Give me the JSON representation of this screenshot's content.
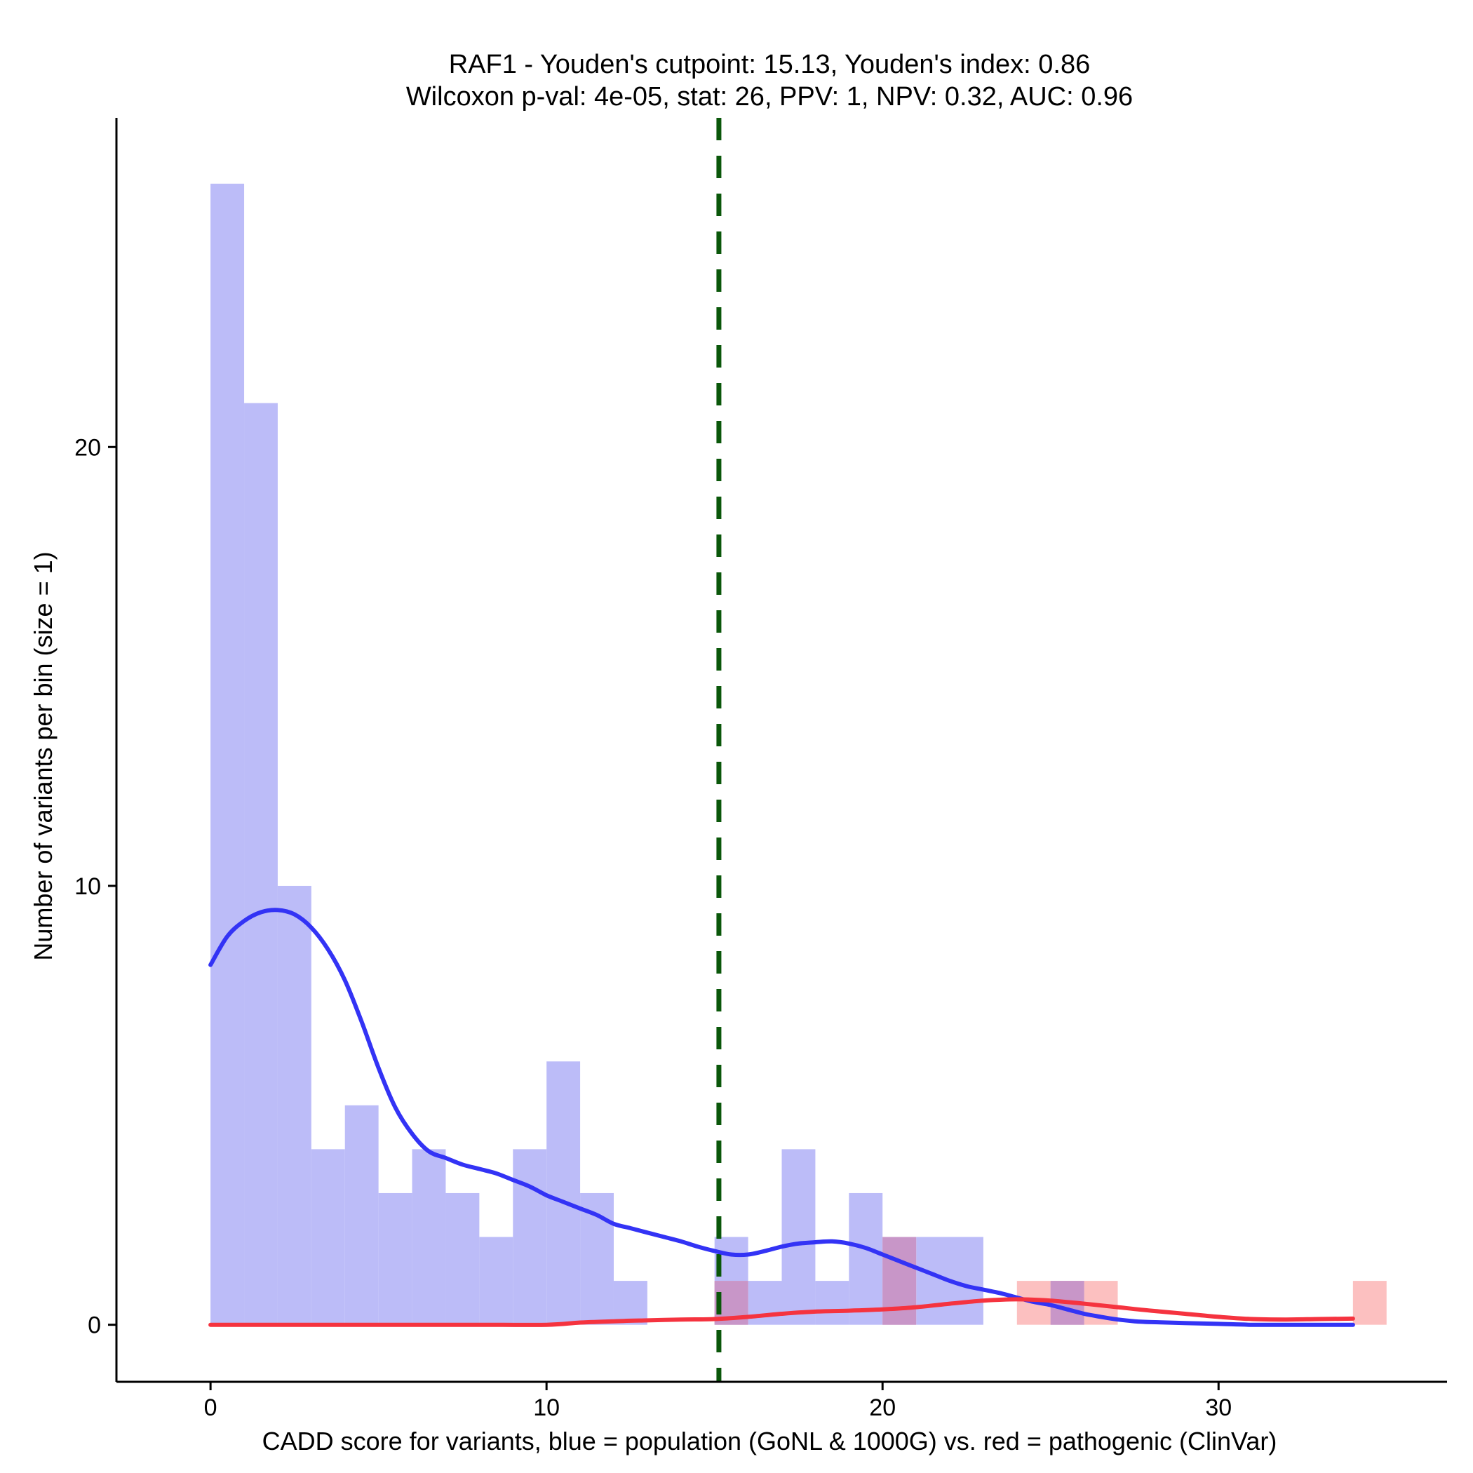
{
  "chart_data": {
    "type": "bar",
    "title_line1": "RAF1 - Youden's cutpoint: 15.13, Youden's index: 0.86",
    "title_line2": "Wilcoxon p-val: 4e-05, stat: 26, PPV: 1, NPV: 0.32, AUC: 0.96",
    "xlabel": "CADD score for variants, blue = population (GoNL & 1000G) vs. red = pathogenic (ClinVar)",
    "ylabel": "Number of variants per bin (size = 1)",
    "xlim": [
      -2.8,
      36.8
    ],
    "ylim": [
      -1.3,
      27.5
    ],
    "x_ticks": [
      0,
      10,
      20,
      30
    ],
    "y_ticks": [
      0,
      10,
      20
    ],
    "bin_width": 1,
    "cutpoint": 15.13,
    "colors": {
      "population_fill": "#bcbcf8",
      "pathogenic_fill": "#fcc0c0",
      "overlap_fill": "#c896c8",
      "population_line": "#3333f5",
      "pathogenic_line": "#f5333f",
      "cutpoint_line": "#0a570a"
    },
    "series": [
      {
        "bins": [
          {
            "x0": 0,
            "count": 26
          },
          {
            "x0": 1,
            "count": 21
          },
          {
            "x0": 2,
            "count": 10
          },
          {
            "x0": 3,
            "count": 4
          },
          {
            "x0": 4,
            "count": 5
          },
          {
            "x0": 5,
            "count": 3
          },
          {
            "x0": 6,
            "count": 4
          },
          {
            "x0": 7,
            "count": 3
          },
          {
            "x0": 8,
            "count": 2
          },
          {
            "x0": 9,
            "count": 4
          },
          {
            "x0": 10,
            "count": 6
          },
          {
            "x0": 11,
            "count": 3
          },
          {
            "x0": 12,
            "count": 1
          },
          {
            "x0": 15,
            "count": 2
          },
          {
            "x0": 16,
            "count": 1
          },
          {
            "x0": 17,
            "count": 4
          },
          {
            "x0": 18,
            "count": 1
          },
          {
            "x0": 19,
            "count": 3
          },
          {
            "x0": 20,
            "count": 2
          },
          {
            "x0": 21,
            "count": 2
          },
          {
            "x0": 22,
            "count": 2
          },
          {
            "x0": 25,
            "count": 1
          }
        ],
        "density": [
          [
            0,
            8.2
          ],
          [
            0.5,
            8.85
          ],
          [
            1,
            9.2
          ],
          [
            1.5,
            9.4
          ],
          [
            2,
            9.45
          ],
          [
            2.5,
            9.35
          ],
          [
            3,
            9.05
          ],
          [
            3.5,
            8.55
          ],
          [
            4,
            7.85
          ],
          [
            4.5,
            6.9
          ],
          [
            5,
            5.85
          ],
          [
            5.5,
            4.95
          ],
          [
            6,
            4.35
          ],
          [
            6.5,
            3.95
          ],
          [
            7,
            3.8
          ],
          [
            7.5,
            3.65
          ],
          [
            8,
            3.55
          ],
          [
            8.5,
            3.45
          ],
          [
            9,
            3.3
          ],
          [
            9.5,
            3.15
          ],
          [
            10,
            2.95
          ],
          [
            10.5,
            2.8
          ],
          [
            11,
            2.65
          ],
          [
            11.5,
            2.5
          ],
          [
            12,
            2.3
          ],
          [
            12.5,
            2.2
          ],
          [
            13,
            2.1
          ],
          [
            13.5,
            2.0
          ],
          [
            14,
            1.9
          ],
          [
            14.5,
            1.78
          ],
          [
            15,
            1.68
          ],
          [
            15.5,
            1.6
          ],
          [
            16,
            1.6
          ],
          [
            16.5,
            1.68
          ],
          [
            17,
            1.78
          ],
          [
            17.5,
            1.85
          ],
          [
            18,
            1.88
          ],
          [
            18.5,
            1.9
          ],
          [
            19,
            1.85
          ],
          [
            19.5,
            1.75
          ],
          [
            20,
            1.6
          ],
          [
            20.5,
            1.45
          ],
          [
            21,
            1.3
          ],
          [
            21.5,
            1.15
          ],
          [
            22,
            1.0
          ],
          [
            22.5,
            0.88
          ],
          [
            23,
            0.8
          ],
          [
            23.5,
            0.72
          ],
          [
            24,
            0.62
          ],
          [
            24.5,
            0.52
          ],
          [
            25,
            0.45
          ],
          [
            25.5,
            0.35
          ],
          [
            26,
            0.25
          ],
          [
            26.5,
            0.18
          ],
          [
            27,
            0.12
          ],
          [
            27.5,
            0.08
          ],
          [
            28,
            0.06
          ],
          [
            29,
            0.04
          ],
          [
            30,
            0.02
          ],
          [
            31,
            0.0
          ],
          [
            32,
            0.0
          ],
          [
            33,
            0.0
          ],
          [
            34,
            0.0
          ]
        ]
      },
      {
        "bins": [
          {
            "x0": 15,
            "count": 1
          },
          {
            "x0": 20,
            "count": 2
          },
          {
            "x0": 24,
            "count": 1
          },
          {
            "x0": 25,
            "count": 1
          },
          {
            "x0": 26,
            "count": 1
          },
          {
            "x0": 34,
            "count": 1
          }
        ],
        "density": [
          [
            0,
            0.0
          ],
          [
            2,
            0.0
          ],
          [
            4,
            0.0
          ],
          [
            6,
            0.0
          ],
          [
            8,
            0.0
          ],
          [
            10,
            0.0
          ],
          [
            11,
            0.05
          ],
          [
            12,
            0.08
          ],
          [
            13,
            0.1
          ],
          [
            14,
            0.12
          ],
          [
            15,
            0.13
          ],
          [
            16,
            0.18
          ],
          [
            17,
            0.25
          ],
          [
            18,
            0.3
          ],
          [
            19,
            0.32
          ],
          [
            20,
            0.35
          ],
          [
            21,
            0.4
          ],
          [
            22,
            0.48
          ],
          [
            23,
            0.55
          ],
          [
            24,
            0.58
          ],
          [
            25,
            0.55
          ],
          [
            26,
            0.48
          ],
          [
            27,
            0.4
          ],
          [
            28,
            0.32
          ],
          [
            29,
            0.25
          ],
          [
            30,
            0.18
          ],
          [
            31,
            0.13
          ],
          [
            32,
            0.12
          ],
          [
            33,
            0.13
          ],
          [
            34,
            0.14
          ]
        ]
      }
    ]
  }
}
